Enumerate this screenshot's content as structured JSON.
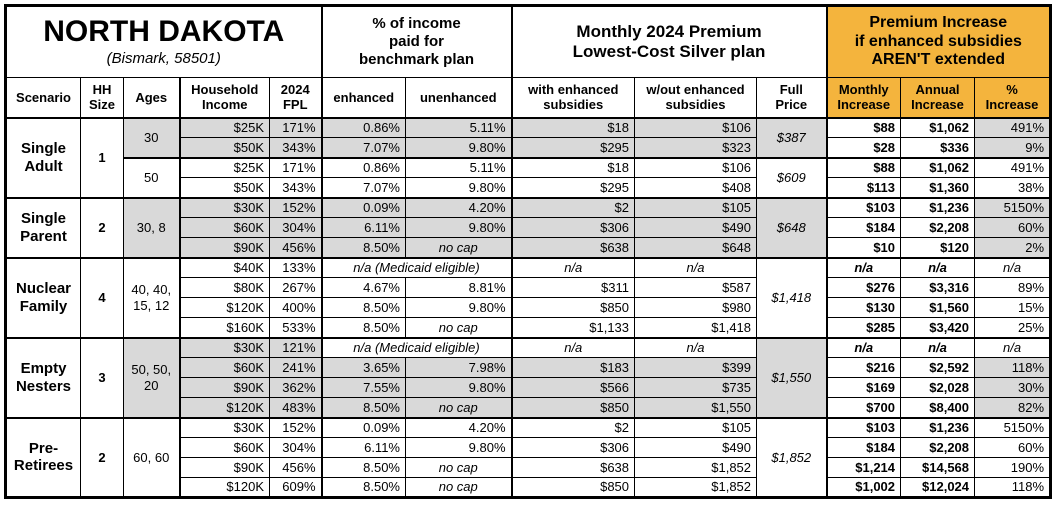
{
  "colors": {
    "shade": "#D9D9D9",
    "accent_orange": "#F4B43D",
    "border": "#000000"
  },
  "header": {
    "state": "NORTH DAKOTA",
    "location": "(Bismark, 58501)",
    "group_pct_income": "% of income\npaid for\nbenchmark plan",
    "group_premium": "Monthly 2024 Premium\nLowest-Cost Silver plan",
    "group_increase": "Premium Increase\nif enhanced subsidies\nAREN'T extended",
    "columns": {
      "scenario": "Scenario",
      "hh_size": "HH\nSize",
      "ages": "Ages",
      "income": "Household\nIncome",
      "fpl": "2024\nFPL",
      "enhanced": "enhanced",
      "unenhanced": "unenhanced",
      "with_sub": "with enhanced\nsubsidies",
      "wout_sub": "w/out enhanced\nsubsidies",
      "full_price": "Full\nPrice",
      "monthly": "Monthly\nIncrease",
      "annual": "Annual\nIncrease",
      "pct": "%\nIncrease"
    }
  },
  "blocks": [
    {
      "scenario": "Single\nAdult",
      "hh_size": "1",
      "age_groups": [
        {
          "ages": "30",
          "shaded": true,
          "full_price": "$387",
          "rows": [
            {
              "income": "$25K",
              "fpl": "171%",
              "enhanced": "0.86%",
              "unenhanced": "5.11%",
              "with_sub": "$18",
              "wout_sub": "$106",
              "monthly": "$88",
              "annual": "$1,062",
              "pct": "491%"
            },
            {
              "income": "$50K",
              "fpl": "343%",
              "enhanced": "7.07%",
              "unenhanced": "9.80%",
              "with_sub": "$295",
              "wout_sub": "$323",
              "monthly": "$28",
              "annual": "$336",
              "pct": "9%"
            }
          ]
        },
        {
          "ages": "50",
          "shaded": false,
          "full_price": "$609",
          "rows": [
            {
              "income": "$25K",
              "fpl": "171%",
              "enhanced": "0.86%",
              "unenhanced": "5.11%",
              "with_sub": "$18",
              "wout_sub": "$106",
              "monthly": "$88",
              "annual": "$1,062",
              "pct": "491%"
            },
            {
              "income": "$50K",
              "fpl": "343%",
              "enhanced": "7.07%",
              "unenhanced": "9.80%",
              "with_sub": "$295",
              "wout_sub": "$408",
              "monthly": "$113",
              "annual": "$1,360",
              "pct": "38%"
            }
          ]
        }
      ]
    },
    {
      "scenario": "Single\nParent",
      "hh_size": "2",
      "age_groups": [
        {
          "ages": "30, 8",
          "shaded": true,
          "full_price": "$648",
          "rows": [
            {
              "income": "$30K",
              "fpl": "152%",
              "enhanced": "0.09%",
              "unenhanced": "4.20%",
              "with_sub": "$2",
              "wout_sub": "$105",
              "monthly": "$103",
              "annual": "$1,236",
              "pct": "5150%"
            },
            {
              "income": "$60K",
              "fpl": "304%",
              "enhanced": "6.11%",
              "unenhanced": "9.80%",
              "with_sub": "$306",
              "wout_sub": "$490",
              "monthly": "$184",
              "annual": "$2,208",
              "pct": "60%"
            },
            {
              "income": "$90K",
              "fpl": "456%",
              "enhanced": "8.50%",
              "unenhanced": "no cap",
              "with_sub": "$638",
              "wout_sub": "$648",
              "monthly": "$10",
              "annual": "$120",
              "pct": "2%"
            }
          ]
        }
      ]
    },
    {
      "scenario": "Nuclear\nFamily",
      "hh_size": "4",
      "age_groups": [
        {
          "ages": "40, 40,\n15, 12",
          "shaded": false,
          "full_price": "$1,418",
          "rows": [
            {
              "income": "$40K",
              "fpl": "133%",
              "medicaid": "n/a (Medicaid eligible)",
              "with_sub": "n/a",
              "wout_sub": "n/a",
              "monthly": "n/a",
              "annual": "n/a",
              "pct": "n/a"
            },
            {
              "income": "$80K",
              "fpl": "267%",
              "enhanced": "4.67%",
              "unenhanced": "8.81%",
              "with_sub": "$311",
              "wout_sub": "$587",
              "monthly": "$276",
              "annual": "$3,316",
              "pct": "89%"
            },
            {
              "income": "$120K",
              "fpl": "400%",
              "enhanced": "8.50%",
              "unenhanced": "9.80%",
              "with_sub": "$850",
              "wout_sub": "$980",
              "monthly": "$130",
              "annual": "$1,560",
              "pct": "15%"
            },
            {
              "income": "$160K",
              "fpl": "533%",
              "enhanced": "8.50%",
              "unenhanced": "no cap",
              "with_sub": "$1,133",
              "wout_sub": "$1,418",
              "monthly": "$285",
              "annual": "$3,420",
              "pct": "25%"
            }
          ]
        }
      ]
    },
    {
      "scenario": "Empty\nNesters",
      "hh_size": "3",
      "age_groups": [
        {
          "ages": "50, 50,\n20",
          "shaded": true,
          "full_price": "$1,550",
          "rows": [
            {
              "income": "$30K",
              "fpl": "121%",
              "medicaid": "n/a (Medicaid eligible)",
              "with_sub": "n/a",
              "wout_sub": "n/a",
              "monthly": "n/a",
              "annual": "n/a",
              "pct": "n/a"
            },
            {
              "income": "$60K",
              "fpl": "241%",
              "enhanced": "3.65%",
              "unenhanced": "7.98%",
              "with_sub": "$183",
              "wout_sub": "$399",
              "monthly": "$216",
              "annual": "$2,592",
              "pct": "118%"
            },
            {
              "income": "$90K",
              "fpl": "362%",
              "enhanced": "7.55%",
              "unenhanced": "9.80%",
              "with_sub": "$566",
              "wout_sub": "$735",
              "monthly": "$169",
              "annual": "$2,028",
              "pct": "30%"
            },
            {
              "income": "$120K",
              "fpl": "483%",
              "enhanced": "8.50%",
              "unenhanced": "no cap",
              "with_sub": "$850",
              "wout_sub": "$1,550",
              "monthly": "$700",
              "annual": "$8,400",
              "pct": "82%"
            }
          ]
        }
      ]
    },
    {
      "scenario": "Pre-\nRetirees",
      "hh_size": "2",
      "age_groups": [
        {
          "ages": "60, 60",
          "shaded": false,
          "full_price": "$1,852",
          "rows": [
            {
              "income": "$30K",
              "fpl": "152%",
              "enhanced": "0.09%",
              "unenhanced": "4.20%",
              "with_sub": "$2",
              "wout_sub": "$105",
              "monthly": "$103",
              "annual": "$1,236",
              "pct": "5150%"
            },
            {
              "income": "$60K",
              "fpl": "304%",
              "enhanced": "6.11%",
              "unenhanced": "9.80%",
              "with_sub": "$306",
              "wout_sub": "$490",
              "monthly": "$184",
              "annual": "$2,208",
              "pct": "60%"
            },
            {
              "income": "$90K",
              "fpl": "456%",
              "enhanced": "8.50%",
              "unenhanced": "no cap",
              "with_sub": "$638",
              "wout_sub": "$1,852",
              "monthly": "$1,214",
              "annual": "$14,568",
              "pct": "190%"
            },
            {
              "income": "$120K",
              "fpl": "609%",
              "enhanced": "8.50%",
              "unenhanced": "no cap",
              "with_sub": "$850",
              "wout_sub": "$1,852",
              "monthly": "$1,002",
              "annual": "$12,024",
              "pct": "118%"
            }
          ]
        }
      ]
    }
  ]
}
